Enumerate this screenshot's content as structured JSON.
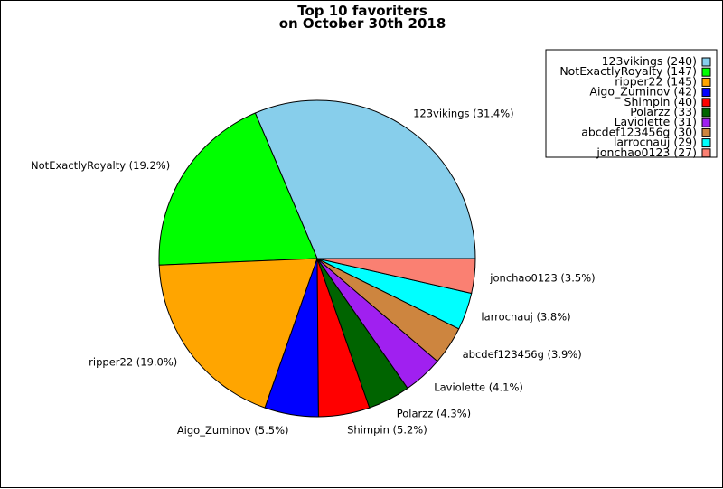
{
  "chart_data": {
    "type": "pie",
    "title": "Top 10 favoriters",
    "subtitle": "on October 30th 2018",
    "legend_position": "top-right",
    "slices": [
      {
        "name": "123vikings",
        "value": 240,
        "percent": 31.4,
        "color": "#87ceeb"
      },
      {
        "name": "NotExactlyRoyalty",
        "value": 147,
        "percent": 19.2,
        "color": "#00ff00"
      },
      {
        "name": "ripper22",
        "value": 145,
        "percent": 19.0,
        "color": "#ffa500"
      },
      {
        "name": "Aigo_Zuminov",
        "value": 42,
        "percent": 5.5,
        "color": "#0000ff"
      },
      {
        "name": "Shimpin",
        "value": 40,
        "percent": 5.2,
        "color": "#ff0000"
      },
      {
        "name": "Polarzz",
        "value": 33,
        "percent": 4.3,
        "color": "#006400"
      },
      {
        "name": "Laviolette",
        "value": 31,
        "percent": 4.1,
        "color": "#a020f0"
      },
      {
        "name": "abcdef123456g",
        "value": 30,
        "percent": 3.9,
        "color": "#cd853f"
      },
      {
        "name": "larrocnauj",
        "value": 29,
        "percent": 3.8,
        "color": "#00ffff"
      },
      {
        "name": "jonchao0123",
        "value": 27,
        "percent": 3.5,
        "color": "#fa8072"
      }
    ]
  }
}
